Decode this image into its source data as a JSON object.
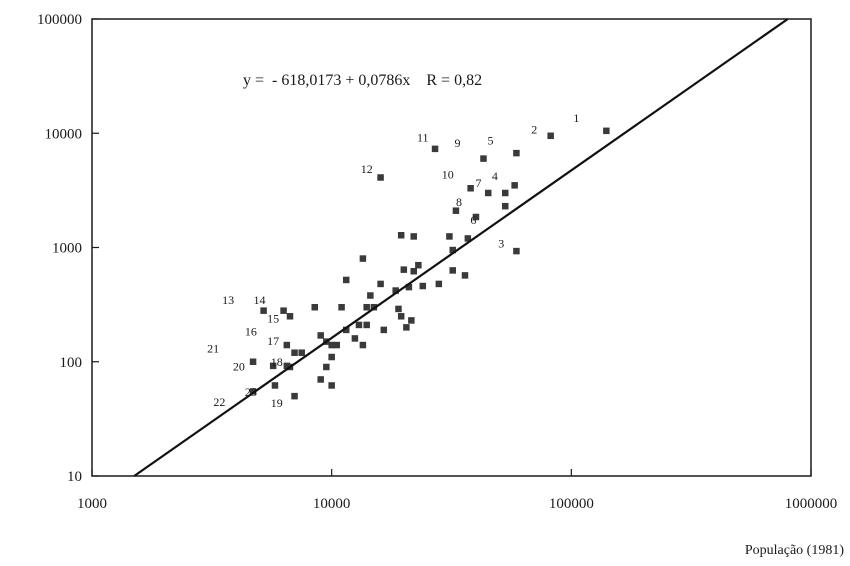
{
  "chart_data": {
    "type": "scatter",
    "x_scale": "log",
    "y_scale": "log",
    "xlim": [
      1000,
      1000000
    ],
    "ylim": [
      10,
      100000
    ],
    "x_ticks": [
      "1000",
      "10000",
      "100000",
      "1000000"
    ],
    "y_ticks": [
      "10",
      "100",
      "1000",
      "10000",
      "100000"
    ],
    "xlabel": "População (1981)",
    "ylabel": "",
    "equation": "y =  - 618,0173 + 0,0786x    R = 0,82",
    "grid": false,
    "fit_line": {
      "from": [
        1500,
        10
      ],
      "to": [
        800000,
        100000
      ]
    },
    "points": [
      {
        "x": 140000,
        "y": 10500
      },
      {
        "x": 82000,
        "y": 9500
      },
      {
        "x": 59000,
        "y": 6700
      },
      {
        "x": 58000,
        "y": 3500
      },
      {
        "x": 53000,
        "y": 2300
      },
      {
        "x": 53000,
        "y": 3000
      },
      {
        "x": 45000,
        "y": 3000
      },
      {
        "x": 43000,
        "y": 6000
      },
      {
        "x": 38000,
        "y": 3300
      },
      {
        "x": 33000,
        "y": 2100
      },
      {
        "x": 27000,
        "y": 7300
      },
      {
        "x": 16000,
        "y": 4100
      },
      {
        "x": 59000,
        "y": 930
      },
      {
        "x": 40000,
        "y": 1850
      },
      {
        "x": 37000,
        "y": 1200
      },
      {
        "x": 31000,
        "y": 1250
      },
      {
        "x": 32000,
        "y": 950
      },
      {
        "x": 22000,
        "y": 1250
      },
      {
        "x": 19500,
        "y": 1280
      },
      {
        "x": 13500,
        "y": 800
      },
      {
        "x": 11500,
        "y": 520
      },
      {
        "x": 36000,
        "y": 570
      },
      {
        "x": 32000,
        "y": 630
      },
      {
        "x": 28000,
        "y": 480
      },
      {
        "x": 24000,
        "y": 460
      },
      {
        "x": 23000,
        "y": 700
      },
      {
        "x": 21000,
        "y": 450
      },
      {
        "x": 22000,
        "y": 620
      },
      {
        "x": 20000,
        "y": 640
      },
      {
        "x": 18500,
        "y": 420
      },
      {
        "x": 16000,
        "y": 480
      },
      {
        "x": 15000,
        "y": 300
      },
      {
        "x": 14500,
        "y": 380
      },
      {
        "x": 14000,
        "y": 300
      },
      {
        "x": 19000,
        "y": 290
      },
      {
        "x": 20500,
        "y": 200
      },
      {
        "x": 21500,
        "y": 230
      },
      {
        "x": 19500,
        "y": 250
      },
      {
        "x": 16500,
        "y": 190
      },
      {
        "x": 14000,
        "y": 210
      },
      {
        "x": 13500,
        "y": 140
      },
      {
        "x": 12500,
        "y": 160
      },
      {
        "x": 13000,
        "y": 210
      },
      {
        "x": 11500,
        "y": 190
      },
      {
        "x": 11000,
        "y": 300
      },
      {
        "x": 10500,
        "y": 140
      },
      {
        "x": 10000,
        "y": 140
      },
      {
        "x": 10000,
        "y": 110
      },
      {
        "x": 9500,
        "y": 150
      },
      {
        "x": 9000,
        "y": 170
      },
      {
        "x": 9500,
        "y": 90
      },
      {
        "x": 9000,
        "y": 70
      },
      {
        "x": 10000,
        "y": 62
      },
      {
        "x": 8500,
        "y": 300
      },
      {
        "x": 7500,
        "y": 120
      },
      {
        "x": 7000,
        "y": 120
      },
      {
        "x": 6500,
        "y": 140
      },
      {
        "x": 6700,
        "y": 250
      },
      {
        "x": 6300,
        "y": 280
      },
      {
        "x": 5200,
        "y": 280
      },
      {
        "x": 6700,
        "y": 90
      },
      {
        "x": 5800,
        "y": 62
      },
      {
        "x": 7000,
        "y": 50
      },
      {
        "x": 4700,
        "y": 100
      },
      {
        "x": 4700,
        "y": 55
      },
      {
        "x": 6500,
        "y": 92
      },
      {
        "x": 5700,
        "y": 92
      }
    ],
    "point_labels": [
      {
        "text": "1",
        "x": 105000,
        "y": 12500
      },
      {
        "text": "2",
        "x": 70000,
        "y": 10000
      },
      {
        "text": "5",
        "x": 46000,
        "y": 8000
      },
      {
        "text": "9",
        "x": 33500,
        "y": 7600
      },
      {
        "text": "11",
        "x": 24000,
        "y": 8500
      },
      {
        "text": "12",
        "x": 14000,
        "y": 4500
      },
      {
        "text": "10",
        "x": 30500,
        "y": 4000
      },
      {
        "text": "7",
        "x": 41000,
        "y": 3400
      },
      {
        "text": "4",
        "x": 48000,
        "y": 3900
      },
      {
        "text": "8",
        "x": 34000,
        "y": 2300
      },
      {
        "text": "6",
        "x": 39000,
        "y": 1600
      },
      {
        "text": "3",
        "x": 51000,
        "y": 1000
      },
      {
        "text": "13",
        "x": 3700,
        "y": 320
      },
      {
        "text": "14",
        "x": 5000,
        "y": 320
      },
      {
        "text": "15",
        "x": 5700,
        "y": 220
      },
      {
        "text": "16",
        "x": 4600,
        "y": 170
      },
      {
        "text": "17",
        "x": 5700,
        "y": 140
      },
      {
        "text": "21",
        "x": 3200,
        "y": 120
      },
      {
        "text": "18",
        "x": 5900,
        "y": 92
      },
      {
        "text": "20",
        "x": 4100,
        "y": 84
      },
      {
        "text": "23",
        "x": 4600,
        "y": 50
      },
      {
        "text": "22",
        "x": 3400,
        "y": 41
      },
      {
        "text": "19",
        "x": 5900,
        "y": 40
      }
    ]
  }
}
